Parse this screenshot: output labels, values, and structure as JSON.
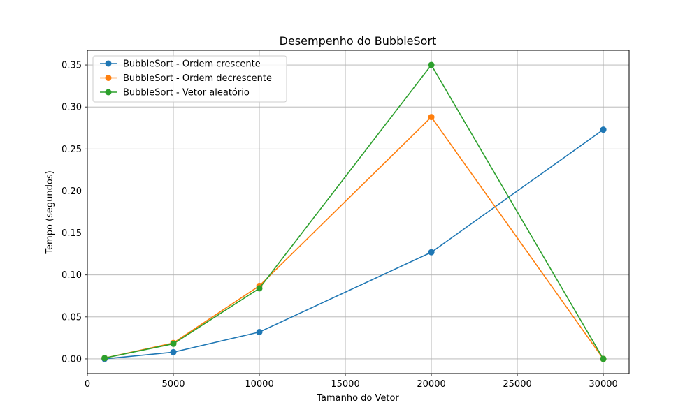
{
  "chart_data": {
    "type": "line",
    "title": "Desempenho do BubbleSort",
    "xlabel": "Tamanho do Vetor",
    "ylabel": "Tempo (segundos)",
    "x": [
      1000,
      5000,
      10000,
      20000,
      30000
    ],
    "xlim": [
      -0.5,
      31500
    ],
    "ylim": [
      -0.0175,
      0.3675
    ],
    "xticks": [
      0,
      5000,
      10000,
      15000,
      20000,
      25000,
      30000
    ],
    "yticks": [
      0.0,
      0.05,
      0.1,
      0.15,
      0.2,
      0.25,
      0.3,
      0.35
    ],
    "xtick_labels": [
      "0",
      "5000",
      "10000",
      "15000",
      "20000",
      "25000",
      "30000"
    ],
    "ytick_labels": [
      "0.00",
      "0.05",
      "0.10",
      "0.15",
      "0.20",
      "0.25",
      "0.30",
      "0.35"
    ],
    "grid": true,
    "legend_position": "top-left",
    "series": [
      {
        "name": "BubbleSort - Ordem crescente",
        "color": "#1f77b4",
        "values": [
          0.0,
          0.008,
          0.032,
          0.127,
          0.273
        ]
      },
      {
        "name": "BubbleSort - Ordem decrescente",
        "color": "#ff7f0e",
        "values": [
          0.001,
          0.019,
          0.087,
          0.288,
          0.0
        ]
      },
      {
        "name": "BubbleSort - Vetor aleatório",
        "color": "#2ca02c",
        "values": [
          0.001,
          0.018,
          0.084,
          0.35,
          0.0
        ]
      }
    ]
  }
}
